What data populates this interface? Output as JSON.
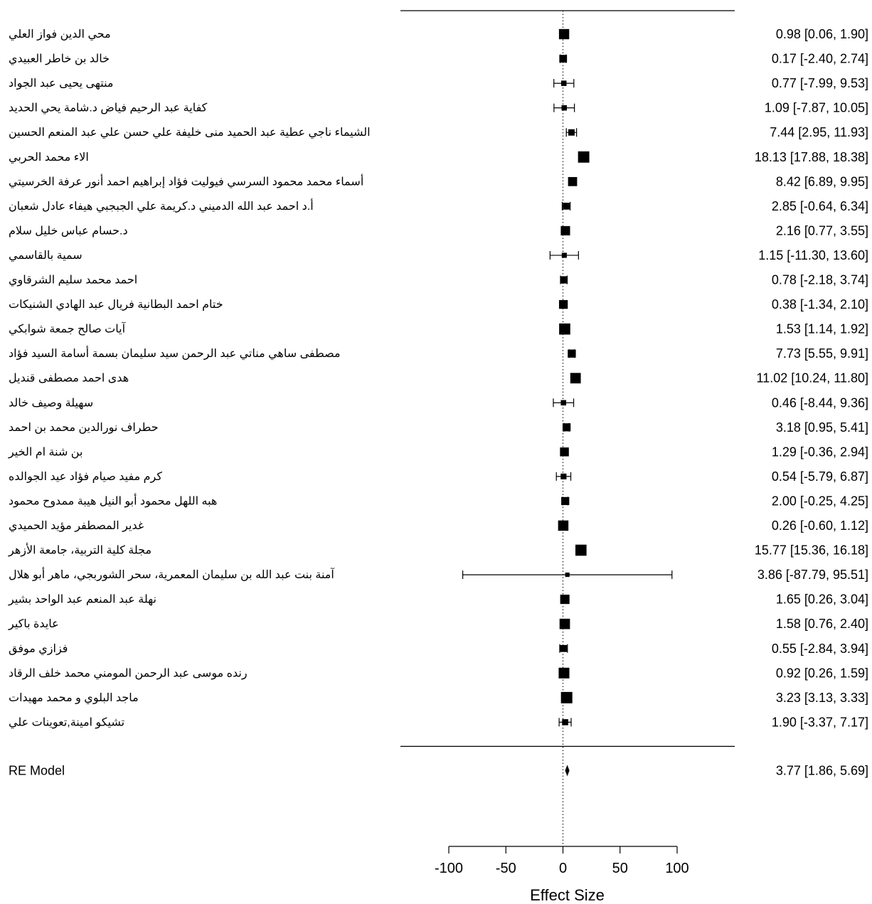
{
  "chart_data": {
    "type": "forest",
    "xlabel": "Effect Size",
    "xticks": [
      -100,
      -50,
      0,
      50,
      100
    ],
    "xlim": [
      -100,
      100
    ],
    "reference_line": 0,
    "studies": [
      {
        "label": "محي الدين فواز العلي",
        "est": 0.98,
        "lo": 0.06,
        "hi": 1.9,
        "ci_text": "0.98 [0.06, 1.90]"
      },
      {
        "label": "خالد بن خاطر العبيدي",
        "est": 0.17,
        "lo": -2.4,
        "hi": 2.74,
        "ci_text": "0.17 [-2.40, 2.74]"
      },
      {
        "label": "منتهى يحيى عبد الجواد",
        "est": 0.77,
        "lo": -7.99,
        "hi": 9.53,
        "ci_text": "0.77 [-7.99, 9.53]"
      },
      {
        "label": "كفاية عبد الرحيم فياض          د.شامة يحي الحديد",
        "est": 1.09,
        "lo": -7.87,
        "hi": 10.05,
        "ci_text": "1.09 [-7.87, 10.05]"
      },
      {
        "label": "الشيماء ناجي عطية عبد الحميد منى خليفة علي حسن          علي عبد المنعم الحسين",
        "est": 7.44,
        "lo": 2.95,
        "hi": 11.93,
        "ci_text": "7.44 [2.95, 11.93]"
      },
      {
        "label": "الاء محمد الحربي",
        "est": 18.13,
        "lo": 17.88,
        "hi": 18.38,
        "ci_text": "18.13 [17.88, 18.38]"
      },
      {
        "label": "أسماء محمد محمود السرسي فيوليت فؤاد إبراهيم          احمد أنور عرفة الخرسيتي",
        "est": 8.42,
        "lo": 6.89,
        "hi": 9.95,
        "ci_text": "8.42 [6.89, 9.95]"
      },
      {
        "label": "أ.د احمد عبد الله الدميني          د.كريمة علي الجبجبي          هيفاء عادل شعبان",
        "est": 2.85,
        "lo": -0.64,
        "hi": 6.34,
        "ci_text": "2.85 [-0.64, 6.34]"
      },
      {
        "label": "د.حسام عباس خليل سلام",
        "est": 2.16,
        "lo": 0.77,
        "hi": 3.55,
        "ci_text": "2.16 [0.77, 3.55]"
      },
      {
        "label": "سمية بالقاسمي",
        "est": 1.15,
        "lo": -11.3,
        "hi": 13.6,
        "ci_text": "1.15 [-11.30, 13.60]"
      },
      {
        "label": "احمد محمد سليم الشرقاوي",
        "est": 0.78,
        "lo": -2.18,
        "hi": 3.74,
        "ci_text": "0.78 [-2.18, 3.74]"
      },
      {
        "label": "ختام احمد البطانية          فريال عبد الهادي الشنيكات",
        "est": 0.38,
        "lo": -1.34,
        "hi": 2.1,
        "ci_text": "0.38 [-1.34, 2.10]"
      },
      {
        "label": "آيات صالح جمعة شوابكي",
        "est": 1.53,
        "lo": 1.14,
        "hi": 1.92,
        "ci_text": "1.53 [1.14, 1.92]"
      },
      {
        "label": "مصطفى ساهي مناتي          عبد الرحمن سيد سليمان          بسمة أسامة السيد فؤاد",
        "est": 7.73,
        "lo": 5.55,
        "hi": 9.91,
        "ci_text": "7.73 [5.55, 9.91]"
      },
      {
        "label": "هدى احمد مصطفى قنديل",
        "est": 11.02,
        "lo": 10.24,
        "hi": 11.8,
        "ci_text": "11.02 [10.24, 11.80]"
      },
      {
        "label": "سهيلة وصيف خالد",
        "est": 0.46,
        "lo": -8.44,
        "hi": 9.36,
        "ci_text": "0.46 [-8.44, 9.36]"
      },
      {
        "label": "حطراف نورالدين محمد بن احمد",
        "est": 3.18,
        "lo": 0.95,
        "hi": 5.41,
        "ci_text": "3.18 [0.95, 5.41]"
      },
      {
        "label": "بن شنة ام الخير",
        "est": 1.29,
        "lo": -0.36,
        "hi": 2.94,
        "ci_text": "1.29 [-0.36, 2.94]"
      },
      {
        "label": "كرم مفيد صيام          فؤاد عيد الجوالده",
        "est": 0.54,
        "lo": -5.79,
        "hi": 6.87,
        "ci_text": "0.54 [-5.79, 6.87]"
      },
      {
        "label": "هبه اللهل محمود أبو النيل  هيبة ممدوح محمود",
        "est": 2.0,
        "lo": -0.25,
        "hi": 4.25,
        "ci_text": "2.00 [-0.25, 4.25]"
      },
      {
        "label": "غدير المصطفر مؤيد الحميدي",
        "est": 0.26,
        "lo": -0.6,
        "hi": 1.12,
        "ci_text": "0.26 [-0.60, 1.12]"
      },
      {
        "label": "مجلة كلية التربية، جامعة الأزهر",
        "est": 15.77,
        "lo": 15.36,
        "hi": 16.18,
        "ci_text": "15.77 [15.36, 16.18]"
      },
      {
        "label": "آمنة بنت عبد الله بن سليمان المعمرية، سحر الشوربجي، ماهر أبو هلال",
        "est": 3.86,
        "lo": -87.79,
        "hi": 95.51,
        "ci_text": "3.86 [-87.79, 95.51]"
      },
      {
        "label": "نهلة عبد المنعم عبد الواحد بشير",
        "est": 1.65,
        "lo": 0.26,
        "hi": 3.04,
        "ci_text": "1.65 [0.26, 3.04]"
      },
      {
        "label": "عايدة باكير",
        "est": 1.58,
        "lo": 0.76,
        "hi": 2.4,
        "ci_text": "1.58 [0.76, 2.40]"
      },
      {
        "label": "فزازي موفق",
        "est": 0.55,
        "lo": -2.84,
        "hi": 3.94,
        "ci_text": "0.55 [-2.84, 3.94]"
      },
      {
        "label": "رنده موسى عبد الرحمن المومني محمد خلف الرقاد",
        "est": 0.92,
        "lo": 0.26,
        "hi": 1.59,
        "ci_text": "0.92 [0.26, 1.59]"
      },
      {
        "label": "ماجد البلوي و محمد مهيدات",
        "est": 3.23,
        "lo": 3.13,
        "hi": 3.33,
        "ci_text": "3.23 [3.13, 3.33]"
      },
      {
        "label": "تشيكو امينة,تعوينات علي",
        "est": 1.9,
        "lo": -3.37,
        "hi": 7.17,
        "ci_text": "1.90 [-3.37, 7.17]"
      }
    ],
    "summary": {
      "label": "RE Model",
      "est": 3.77,
      "lo": 1.86,
      "hi": 5.69,
      "ci_text": "3.77 [1.86, 5.69]"
    }
  }
}
